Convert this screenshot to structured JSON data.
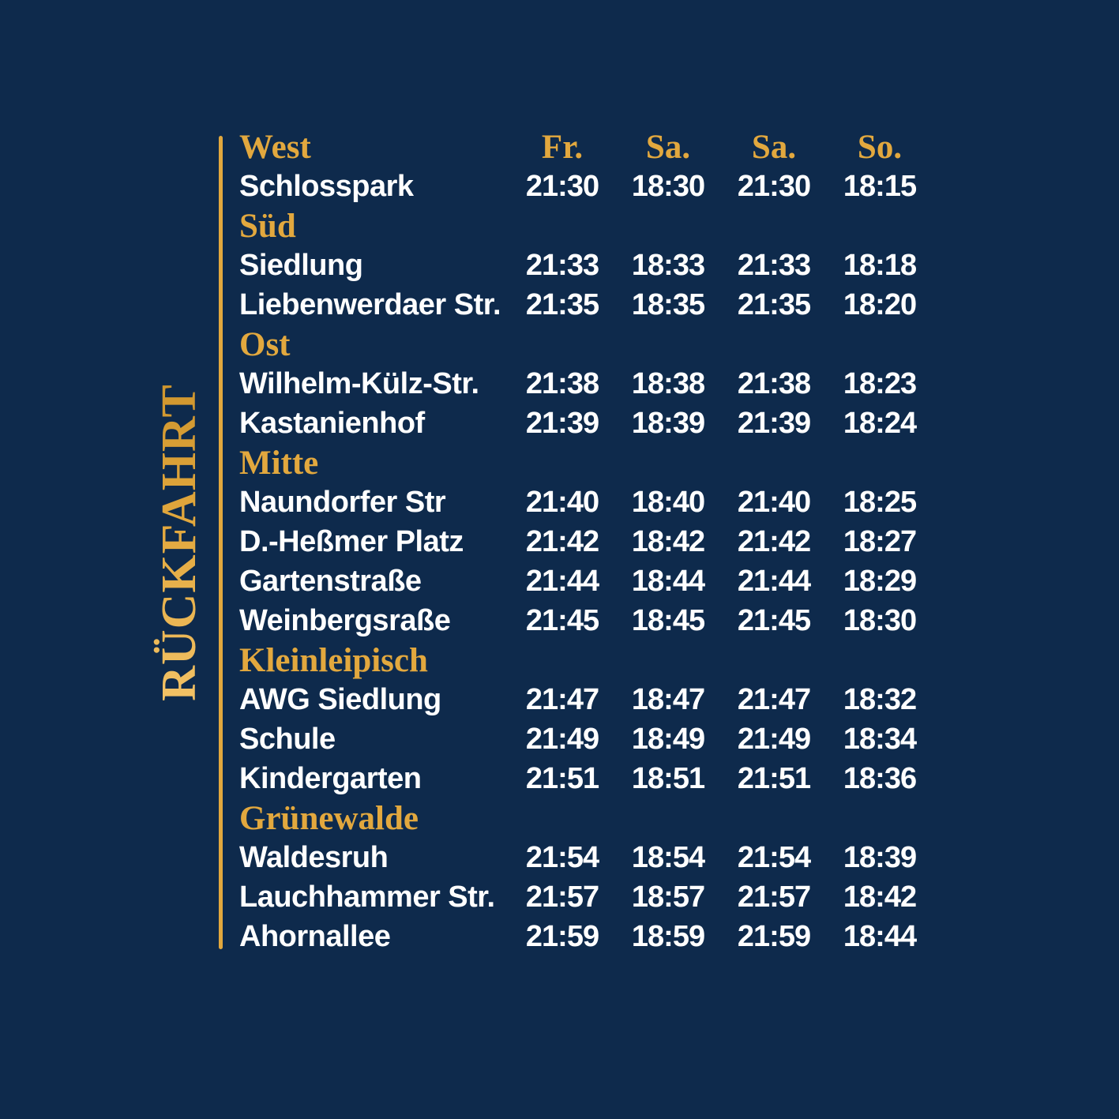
{
  "poster": {
    "side_label": "RÜCKFAHRT",
    "colors": {
      "background": "#0e2a4c",
      "gold": "#e2a83e",
      "gold_bright": "#f2c266",
      "gold_deep": "#cf962e",
      "text_white": "#ffffff"
    }
  },
  "timetable": {
    "header": {
      "section": "West",
      "days": [
        "Fr.",
        "Sa.",
        "Sa.",
        "So."
      ]
    },
    "rows": [
      {
        "type": "stop",
        "name": "Schlosspark",
        "times": [
          "21:30",
          "18:30",
          "21:30",
          "18:15"
        ]
      },
      {
        "type": "section",
        "name": "Süd"
      },
      {
        "type": "stop",
        "name": "Siedlung",
        "times": [
          "21:33",
          "18:33",
          "21:33",
          "18:18"
        ]
      },
      {
        "type": "stop",
        "name": "Liebenwerdaer Str.",
        "times": [
          "21:35",
          "18:35",
          "21:35",
          "18:20"
        ]
      },
      {
        "type": "section",
        "name": "Ost"
      },
      {
        "type": "stop",
        "name": "Wilhelm-Külz-Str.",
        "times": [
          "21:38",
          "18:38",
          "21:38",
          "18:23"
        ]
      },
      {
        "type": "stop",
        "name": "Kastanienhof",
        "times": [
          "21:39",
          "18:39",
          "21:39",
          "18:24"
        ]
      },
      {
        "type": "section",
        "name": "Mitte"
      },
      {
        "type": "stop",
        "name": "Naundorfer Str",
        "times": [
          "21:40",
          "18:40",
          "21:40",
          "18:25"
        ]
      },
      {
        "type": "stop",
        "name": "D.-Heßmer Platz",
        "times": [
          "21:42",
          "18:42",
          "21:42",
          "18:27"
        ]
      },
      {
        "type": "stop",
        "name": "Gartenstraße",
        "times": [
          "21:44",
          "18:44",
          "21:44",
          "18:29"
        ]
      },
      {
        "type": "stop",
        "name": "Weinbergsraße",
        "times": [
          "21:45",
          "18:45",
          "21:45",
          "18:30"
        ]
      },
      {
        "type": "section",
        "name": "Kleinleipisch"
      },
      {
        "type": "stop",
        "name": "AWG Siedlung",
        "times": [
          "21:47",
          "18:47",
          "21:47",
          "18:32"
        ]
      },
      {
        "type": "stop",
        "name": "Schule",
        "times": [
          "21:49",
          "18:49",
          "21:49",
          "18:34"
        ]
      },
      {
        "type": "stop",
        "name": "Kindergarten",
        "times": [
          "21:51",
          "18:51",
          "21:51",
          "18:36"
        ]
      },
      {
        "type": "section",
        "name": "Grünewalde"
      },
      {
        "type": "stop",
        "name": "Waldesruh",
        "times": [
          "21:54",
          "18:54",
          "21:54",
          "18:39"
        ]
      },
      {
        "type": "stop",
        "name": "Lauchhammer Str.",
        "times": [
          "21:57",
          "18:57",
          "21:57",
          "18:42"
        ]
      },
      {
        "type": "stop",
        "name": "Ahornallee",
        "times": [
          "21:59",
          "18:59",
          "21:59",
          "18:44"
        ]
      }
    ]
  }
}
